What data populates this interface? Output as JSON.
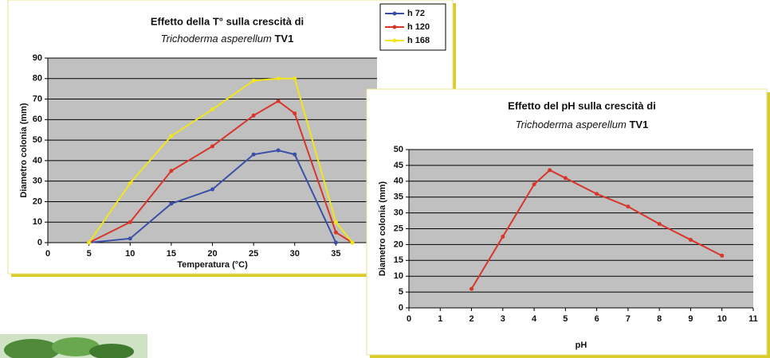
{
  "chart_data": [
    {
      "type": "line",
      "title": [
        "Effetto della T° sulla crescità di",
        "Trichoderma asperellum",
        "TV1"
      ],
      "x_label": "Temperatura (°C)",
      "y_label": "Diametro colonia (mm)",
      "x": [
        5,
        10,
        15,
        20,
        25,
        28,
        30,
        35,
        37
      ],
      "series": [
        {
          "name": "h 72",
          "color": "#3a4fa8",
          "values": [
            0,
            2,
            19,
            26,
            43,
            45,
            43,
            0,
            null
          ]
        },
        {
          "name": "h 120",
          "color": "#d8362a",
          "values": [
            0,
            10,
            35,
            47,
            62,
            69,
            63,
            5,
            0
          ]
        },
        {
          "name": "h 168",
          "color": "#f2e51a",
          "values": [
            0,
            29,
            52,
            65,
            79,
            80,
            80,
            10,
            0
          ]
        }
      ],
      "xlim": [
        0,
        40
      ],
      "xticks": [
        0,
        5,
        10,
        15,
        20,
        25,
        30,
        35
      ],
      "ylim": [
        0,
        90
      ],
      "yticks": [
        0,
        10,
        20,
        30,
        40,
        50,
        60,
        70,
        80,
        90
      ],
      "grid": true,
      "legend": "top-right"
    },
    {
      "type": "line",
      "title": [
        "Effetto del pH sulla crescità di",
        "Trichoderma asperellum",
        "TV1"
      ],
      "x_label": "pH",
      "y_label": "Diametro colonia (mm)",
      "x": [
        2,
        3,
        4,
        4.5,
        5,
        6,
        7,
        8,
        9,
        10
      ],
      "values": [
        6,
        22.5,
        39,
        43.5,
        41,
        36,
        32,
        26.5,
        21.5,
        16.5
      ],
      "color": "#d8362a",
      "xlim": [
        0,
        11
      ],
      "xticks": [
        0,
        1,
        2,
        3,
        4,
        5,
        6,
        7,
        8,
        9,
        10,
        11
      ],
      "ylim": [
        0,
        50
      ],
      "yticks": [
        0,
        5,
        10,
        15,
        20,
        25,
        30,
        35,
        40,
        45,
        50
      ],
      "grid": true
    }
  ]
}
